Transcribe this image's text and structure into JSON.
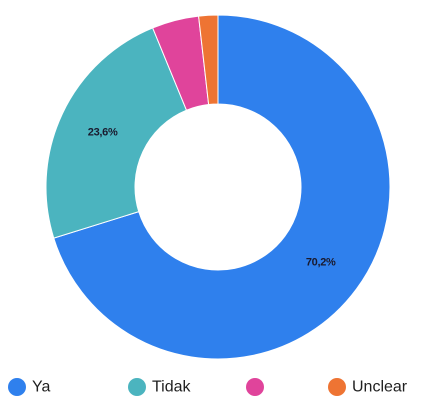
{
  "chart_data": {
    "type": "pie",
    "donut": true,
    "categories": [
      "Ya",
      "Tidak",
      "",
      "Unclear"
    ],
    "values": [
      70.2,
      23.6,
      4.4,
      1.8
    ],
    "labels": [
      "70,2%",
      "23,6%",
      "",
      ""
    ],
    "colors": [
      "#2f80ed",
      "#4bb4bf",
      "#e0449b",
      "#ee7433"
    ],
    "legend": {
      "placement": "bottom",
      "entries": [
        "Ya",
        "Tidak",
        "",
        "Unclear"
      ]
    },
    "title": ""
  }
}
